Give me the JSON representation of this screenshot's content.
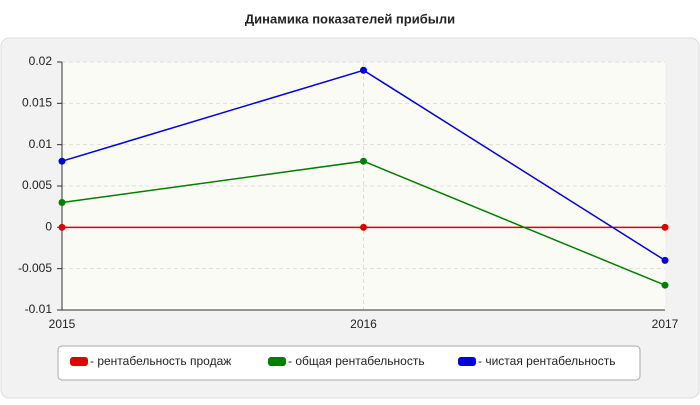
{
  "chart_data": {
    "type": "line",
    "title": "Динамика показателей прибыли",
    "categories": [
      "2015",
      "2016",
      "2017"
    ],
    "series": [
      {
        "name": "- рентабельность продаж",
        "color": "#e00000",
        "values": [
          0,
          0,
          0
        ]
      },
      {
        "name": "- общая рентабельность",
        "color": "#008000",
        "values": [
          0.003,
          0.008,
          -0.007
        ]
      },
      {
        "name": "- чистая рентабельность",
        "color": "#0000e0",
        "values": [
          0.008,
          0.019,
          -0.004
        ]
      }
    ],
    "ylim": [
      -0.01,
      0.02
    ],
    "yticks": [
      -0.01,
      -0.005,
      0,
      0.005,
      0.01,
      0.015,
      0.02
    ],
    "grid": true
  }
}
